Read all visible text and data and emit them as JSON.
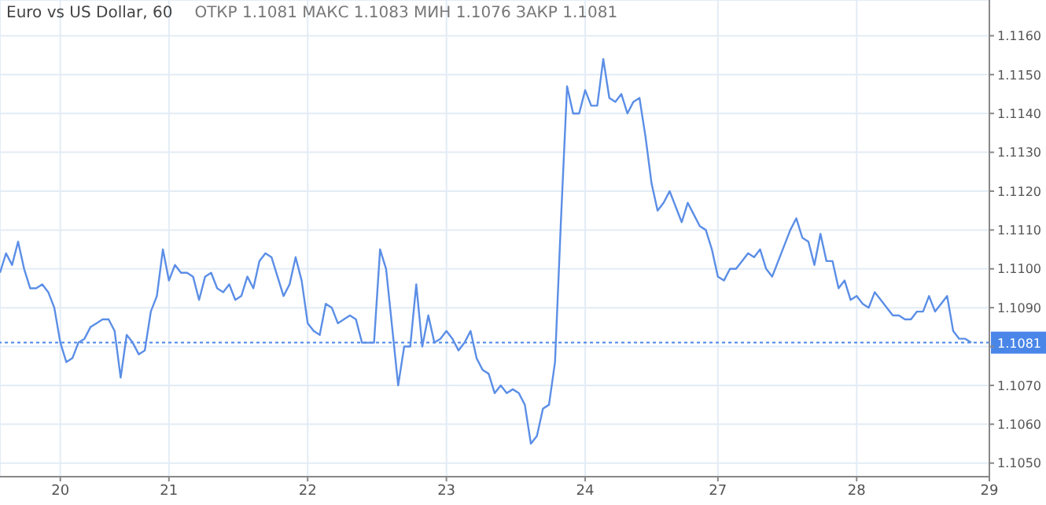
{
  "chart_data": {
    "type": "line",
    "title": "Euro vs US Dollar, 60",
    "subtitle": "ОТКР 1.1081  МАКС 1.1083  МИН 1.1076  ЗАКР 1.1081",
    "categories": [
      null,
      null,
      null,
      null,
      null,
      null,
      null,
      null,
      null,
      null,
      "20",
      null,
      null,
      null,
      null,
      null,
      null,
      null,
      null,
      null,
      null,
      null,
      null,
      null,
      null,
      null,
      null,
      null,
      "21",
      null,
      null,
      null,
      null,
      null,
      null,
      null,
      null,
      null,
      null,
      null,
      null,
      null,
      null,
      null,
      null,
      null,
      null,
      null,
      null,
      null,
      null,
      "22",
      null,
      null,
      null,
      null,
      null,
      null,
      null,
      null,
      null,
      null,
      null,
      null,
      null,
      null,
      null,
      null,
      null,
      null,
      null,
      null,
      null,
      null,
      "23",
      null,
      null,
      null,
      null,
      null,
      null,
      null,
      null,
      null,
      null,
      null,
      null,
      null,
      null,
      null,
      null,
      null,
      null,
      null,
      null,
      null,
      null,
      "24",
      null,
      null,
      null,
      null,
      null,
      null,
      null,
      null,
      null,
      null,
      null,
      null,
      null,
      null,
      null,
      null,
      null,
      null,
      null,
      null,
      null,
      "27",
      null,
      null,
      null,
      null,
      null,
      null,
      null,
      null,
      null,
      null,
      null,
      null,
      null,
      null,
      null,
      null,
      null,
      null,
      null,
      null,
      null,
      null,
      "28",
      null,
      null,
      null,
      null,
      null,
      null,
      null,
      null,
      null,
      null,
      null,
      null,
      null,
      null,
      null,
      null,
      null,
      null,
      null,
      null,
      null,
      "29"
    ],
    "ylim": [
      1.10465,
      1.11692
    ],
    "yticks": [
      {
        "value": 1.105,
        "label": "1.1050"
      },
      {
        "value": 1.106,
        "label": "1.1060"
      },
      {
        "value": 1.107,
        "label": "1.1070"
      },
      {
        "value": 1.108,
        "label": null
      },
      {
        "value": 1.109,
        "label": "1.1090"
      },
      {
        "value": 1.11,
        "label": "1.1100"
      },
      {
        "value": 1.111,
        "label": "1.1110"
      },
      {
        "value": 1.112,
        "label": "1.1120"
      },
      {
        "value": 1.113,
        "label": "1.1130"
      },
      {
        "value": 1.114,
        "label": "1.1140"
      },
      {
        "value": 1.115,
        "label": "1.1150"
      },
      {
        "value": 1.116,
        "label": "1.1160"
      }
    ],
    "grid": true,
    "ref_lines": [
      {
        "axis": "y",
        "value": 1.1081,
        "label": "1.1081",
        "color": "#4a86e8",
        "line_style": "dotted"
      }
    ],
    "series": [
      {
        "color": "#5b8ee6",
        "values": [
          1.1099,
          1.1104,
          1.1101,
          1.1107,
          1.11,
          1.1095,
          1.1095,
          1.1096,
          1.1094,
          1.109,
          1.1081,
          1.1076,
          1.1077,
          1.1081,
          1.1082,
          1.1085,
          1.1086,
          1.1087,
          1.1087,
          1.1084,
          1.1072,
          1.1083,
          1.1081,
          1.1078,
          1.1079,
          1.1089,
          1.1093,
          1.1105,
          1.1097,
          1.1101,
          1.1099,
          1.1099,
          1.1098,
          1.1092,
          1.1098,
          1.1099,
          1.1095,
          1.1094,
          1.1096,
          1.1092,
          1.1093,
          1.1098,
          1.1095,
          1.1102,
          1.1104,
          1.1103,
          1.1098,
          1.1093,
          1.1096,
          1.1103,
          1.1097,
          1.1086,
          1.1084,
          1.1083,
          1.1091,
          1.109,
          1.1086,
          1.1087,
          1.1088,
          1.1087,
          1.1081,
          1.1081,
          1.1081,
          1.1105,
          1.11,
          1.1085,
          1.107,
          1.108,
          1.108,
          1.1096,
          1.108,
          1.1088,
          1.1081,
          1.1082,
          1.1084,
          1.1082,
          1.1079,
          1.1081,
          1.1084,
          1.1077,
          1.1074,
          1.1073,
          1.1068,
          1.107,
          1.1068,
          1.1069,
          1.1068,
          1.1065,
          1.1055,
          1.1057,
          1.1064,
          1.1065,
          1.1076,
          1.1113,
          1.1147,
          1.114,
          1.114,
          1.1146,
          1.1142,
          1.1142,
          1.1154,
          1.1144,
          1.1143,
          1.1145,
          1.114,
          1.1143,
          1.1144,
          1.1134,
          1.1122,
          1.1115,
          1.1117,
          1.112,
          1.1116,
          1.1112,
          1.1117,
          1.1114,
          1.1111,
          1.111,
          1.1105,
          1.1098,
          1.1097,
          1.11,
          1.11,
          1.1102,
          1.1104,
          1.1103,
          1.1105,
          1.11,
          1.1098,
          1.1102,
          1.1106,
          1.111,
          1.1113,
          1.1108,
          1.1107,
          1.1101,
          1.1109,
          1.1102,
          1.1102,
          1.1095,
          1.1097,
          1.1092,
          1.1093,
          1.1091,
          1.109,
          1.1094,
          1.1092,
          1.109,
          1.1088,
          1.1088,
          1.1087,
          1.1087,
          1.1089,
          1.1089,
          1.1093,
          1.1089,
          1.1091,
          1.1093,
          1.1084,
          1.1082,
          1.1082,
          1.1081,
          null,
          null,
          null
        ]
      }
    ]
  }
}
